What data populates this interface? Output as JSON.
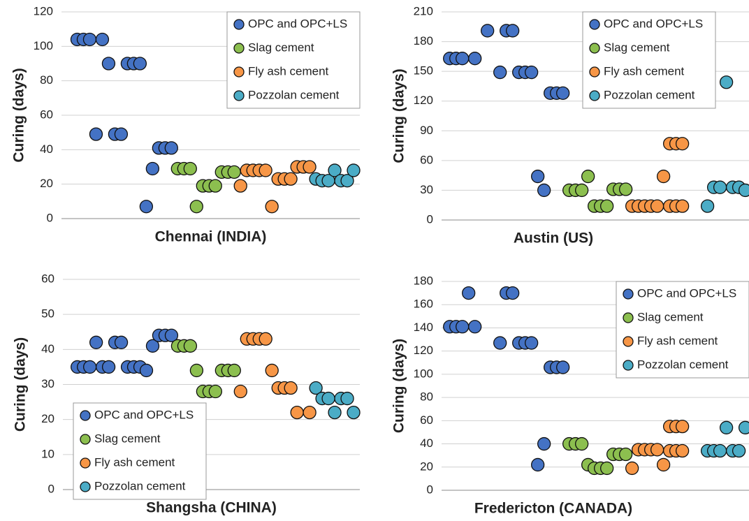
{
  "chart_data": [
    {
      "type": "scatter",
      "xlabel": "Chennai (INDIA)",
      "ylabel": "Curing (days)",
      "ylim": [
        0,
        120
      ],
      "yticks": [
        0,
        20,
        40,
        60,
        80,
        100,
        120
      ],
      "xlim": [
        -1.5,
        46
      ],
      "grid": true,
      "legend": "upper right",
      "series": [
        {
          "name": "OPC and OPC+LS",
          "color": "#4472c4",
          "x": [
            1,
            2,
            3,
            4,
            5,
            6,
            7,
            8,
            9,
            10,
            11,
            12,
            13,
            14,
            15,
            16
          ],
          "values": [
            104,
            104,
            104,
            49,
            104,
            90,
            49,
            49,
            90,
            90,
            90,
            7,
            29,
            41,
            41,
            41
          ]
        },
        {
          "name": "Slag cement",
          "color": "#8cbf4f",
          "x": [
            17,
            18,
            19,
            20,
            21,
            22,
            23,
            24,
            25,
            26
          ],
          "values": [
            29,
            29,
            29,
            7,
            19,
            19,
            19,
            27,
            27,
            27
          ]
        },
        {
          "name": "Fly ash cement",
          "color": "#f79646",
          "x": [
            27,
            28,
            29,
            30,
            31,
            32,
            33,
            34,
            35,
            36,
            37,
            38
          ],
          "values": [
            19,
            28,
            28,
            28,
            28,
            7,
            23,
            23,
            23,
            30,
            30,
            30
          ]
        },
        {
          "name": "Pozzolan cement",
          "color": "#4bacc6",
          "x": [
            39,
            40,
            41,
            42,
            43,
            44,
            45
          ],
          "values": [
            23,
            22,
            22,
            28,
            22,
            22,
            28
          ]
        }
      ]
    },
    {
      "type": "scatter",
      "xlabel": "Austin (US)",
      "ylabel": "Curing (days)",
      "ylim": [
        0,
        210
      ],
      "yticks": [
        0,
        30,
        60,
        90,
        120,
        150,
        180,
        210
      ],
      "xlim": [
        -0.3,
        48.6
      ],
      "grid": true,
      "legend": "upper right",
      "series": [
        {
          "name": "OPC and OPC+LS",
          "color": "#4472c4",
          "x": [
            1,
            2,
            3,
            5,
            7,
            9,
            10,
            11,
            12,
            13,
            14,
            15,
            16,
            17,
            18,
            19
          ],
          "values": [
            163,
            163,
            163,
            163,
            191,
            149,
            191,
            191,
            149,
            149,
            149,
            44,
            30,
            128,
            128,
            128
          ]
        },
        {
          "name": "Slag cement",
          "color": "#8cbf4f",
          "x": [
            20,
            21,
            22,
            23,
            24,
            25,
            26,
            27,
            28,
            29
          ],
          "values": [
            30,
            30,
            30,
            44,
            14,
            14,
            14,
            31,
            31,
            31
          ]
        },
        {
          "name": "Fly ash cement",
          "color": "#f79646",
          "x": [
            30,
            31,
            32,
            33,
            34,
            35,
            36,
            37,
            38,
            36,
            37,
            38
          ],
          "values": [
            14,
            14,
            14,
            14,
            14,
            44,
            14,
            14,
            14,
            77,
            77,
            77
          ]
        },
        {
          "name": "Pozzolan cement",
          "color": "#4bacc6",
          "x": [
            42,
            43,
            44,
            45,
            46,
            47,
            48
          ],
          "values": [
            14,
            33,
            33,
            139,
            33,
            33,
            30
          ]
        }
      ]
    },
    {
      "type": "scatter",
      "xlabel": "Shangsha (CHINA)",
      "ylabel": "Curing (days)",
      "ylim": [
        0,
        60
      ],
      "yticks": [
        0,
        10,
        20,
        30,
        40,
        50,
        60
      ],
      "xlim": [
        -1.3,
        46
      ],
      "grid": true,
      "legend": "lower left",
      "series": [
        {
          "name": "OPC and OPC+LS",
          "color": "#4472c4",
          "x": [
            1,
            2,
            3,
            4,
            5,
            6,
            7,
            8,
            9,
            10,
            11,
            12,
            13,
            14,
            15,
            16
          ],
          "values": [
            35,
            35,
            35,
            42,
            35,
            35,
            42,
            42,
            35,
            35,
            35,
            34,
            41,
            44,
            44,
            44
          ]
        },
        {
          "name": "Slag cement",
          "color": "#8cbf4f",
          "x": [
            17,
            18,
            19,
            20,
            21,
            22,
            23,
            24,
            25,
            26
          ],
          "values": [
            41,
            41,
            41,
            34,
            28,
            28,
            28,
            34,
            34,
            34
          ]
        },
        {
          "name": "Fly ash cement",
          "color": "#f79646",
          "x": [
            27,
            28,
            29,
            30,
            31,
            32,
            33,
            34,
            35,
            36,
            38
          ],
          "values": [
            28,
            43,
            43,
            43,
            43,
            34,
            29,
            29,
            29,
            22,
            22
          ]
        },
        {
          "name": "Pozzolan cement",
          "color": "#4bacc6",
          "x": [
            39,
            40,
            41,
            42,
            43,
            44,
            45
          ],
          "values": [
            29,
            26,
            26,
            22,
            26,
            26,
            22
          ]
        }
      ]
    },
    {
      "type": "scatter",
      "xlabel": "Fredericton (CANADA)",
      "ylabel": "Curing (days)",
      "ylim": [
        0,
        180
      ],
      "yticks": [
        0,
        20,
        40,
        60,
        80,
        100,
        120,
        140,
        160,
        180
      ],
      "xlim": [
        -0.3,
        48.6
      ],
      "grid": true,
      "legend": "upper right",
      "series": [
        {
          "name": "OPC and OPC+LS",
          "color": "#4472c4",
          "x": [
            1,
            2,
            3,
            4,
            5,
            9,
            10,
            11,
            12,
            13,
            14,
            15,
            16,
            17,
            18,
            19
          ],
          "values": [
            141,
            141,
            141,
            170,
            141,
            127,
            170,
            170,
            127,
            127,
            127,
            22,
            40,
            106,
            106,
            106
          ]
        },
        {
          "name": "Slag cement",
          "color": "#8cbf4f",
          "x": [
            20,
            21,
            22,
            23,
            24,
            25,
            26,
            27,
            28,
            29
          ],
          "values": [
            40,
            40,
            40,
            22,
            19,
            19,
            19,
            31,
            31,
            31
          ]
        },
        {
          "name": "Fly ash cement",
          "color": "#f79646",
          "x": [
            30,
            31,
            32,
            33,
            34,
            35,
            36,
            37,
            38,
            36,
            37,
            38
          ],
          "values": [
            19,
            35,
            35,
            35,
            35,
            22,
            34,
            34,
            34,
            55,
            55,
            55
          ]
        },
        {
          "name": "Pozzolan cement",
          "color": "#4bacc6",
          "x": [
            42,
            43,
            44,
            45,
            46,
            47,
            48
          ],
          "values": [
            34,
            34,
            34,
            54,
            34,
            34,
            54
          ]
        }
      ]
    }
  ]
}
